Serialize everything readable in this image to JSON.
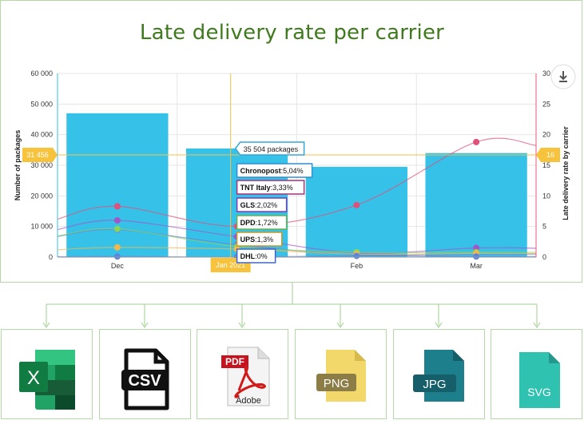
{
  "chart_data": {
    "type": "bar",
    "title": "Late delivery rate per carrier",
    "categories": [
      "Dec",
      "Jan 2021",
      "Feb",
      "Mar"
    ],
    "x_tick_labels": [
      "Dec",
      "",
      "Feb",
      "Mar"
    ],
    "bar_series": {
      "name": "Number of packages",
      "values": [
        47000,
        35504,
        29500,
        34000
      ],
      "color": "#36c2e8"
    },
    "ylabel_left": "Number of packages",
    "ylabel_right": "Late delivery rate by carrier",
    "ylim_left": [
      0,
      60000
    ],
    "ylim_right": [
      0,
      30
    ],
    "left_ticks": [
      "0",
      "10 000",
      "20 000",
      "30 000",
      "40 000",
      "50 000",
      "60 000"
    ],
    "right_ticks": [
      "0",
      "5",
      "10",
      "15",
      "20",
      "25",
      "30"
    ],
    "line_series": [
      {
        "name": "Chronopost",
        "values": [
          8.3,
          5.04,
          8.5,
          18.8
        ],
        "color": "#e0507a"
      },
      {
        "name": "TNT Italy",
        "values": [
          6,
          3.33,
          0.7,
          1.5
        ],
        "color": "#a257c9"
      },
      {
        "name": "GLS",
        "values": [
          4.5,
          2.02,
          0.4,
          0.5
        ],
        "color": "#6f7be2"
      },
      {
        "name": "DPD",
        "values": [
          4.6,
          1.72,
          0.8,
          0.8
        ],
        "color": "#88d65a"
      },
      {
        "name": "UPS",
        "values": [
          1.6,
          1.3,
          0.5,
          0.6
        ],
        "color": "#f2b84b"
      },
      {
        "name": "DHL",
        "values": [
          0.1,
          0,
          0.2,
          0.1
        ],
        "color": "#5a86e0"
      }
    ],
    "grid": true,
    "crosshair": {
      "category": "Jan 2021",
      "left_value_label": "31 456",
      "right_value_label": "16",
      "x_label": "Jan 2021"
    },
    "tooltip": {
      "bar_label": "35 504 packages",
      "items": [
        {
          "name": "Chronopost",
          "value": "5,04%",
          "color": "#2f8fd0"
        },
        {
          "name": "TNT Italy",
          "value": "3,33%",
          "color": "#a2327a"
        },
        {
          "name": "GLS",
          "value": "2,02%",
          "color": "#7a3fb0"
        },
        {
          "name": "DPD",
          "value": "1,72%",
          "color": "#6ab04c"
        },
        {
          "name": "UPS",
          "value": "1,3%",
          "color": "#c79a2c"
        },
        {
          "name": "DHL",
          "value": "0%",
          "color": "#4166c8"
        }
      ]
    }
  },
  "exports": [
    {
      "name": "excel",
      "label": "X"
    },
    {
      "name": "csv",
      "label": "CSV"
    },
    {
      "name": "pdf",
      "label": "PDF",
      "sublabel": "Adobe"
    },
    {
      "name": "png",
      "label": "PNG"
    },
    {
      "name": "jpg",
      "label": "JPG"
    },
    {
      "name": "svg",
      "label": "SVG"
    }
  ]
}
